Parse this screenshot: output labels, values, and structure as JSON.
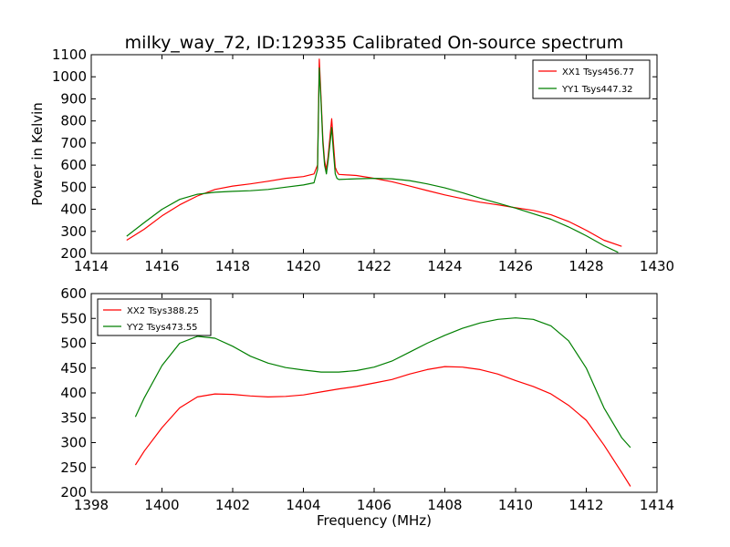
{
  "title": "milky_way_72, ID:129335 Calibrated On-source spectrum",
  "colors": {
    "xx": "#ff0000",
    "yy": "#007f00"
  },
  "chart_data": [
    {
      "type": "line",
      "xlabel": "",
      "ylabel": "Power in Kelvin",
      "xlim": [
        1414,
        1430
      ],
      "ylim": [
        200,
        1100
      ],
      "xticks": [
        1414,
        1416,
        1418,
        1420,
        1422,
        1424,
        1426,
        1428,
        1430
      ],
      "yticks": [
        200,
        300,
        400,
        500,
        600,
        700,
        800,
        900,
        1000,
        1100
      ],
      "legend": "top-right",
      "series": [
        {
          "name": "XX1 Tsys456.77",
          "color": "#ff0000",
          "x": [
            1415.0,
            1415.5,
            1416.0,
            1416.5,
            1417.0,
            1417.5,
            1418.0,
            1418.5,
            1419.0,
            1419.5,
            1420.0,
            1420.3,
            1420.4,
            1420.45,
            1420.5,
            1420.55,
            1420.6,
            1420.65,
            1420.7,
            1420.8,
            1420.85,
            1420.9,
            1420.95,
            1421.0,
            1421.5,
            1422.0,
            1422.5,
            1423.0,
            1423.5,
            1424.0,
            1424.5,
            1425.0,
            1425.5,
            1426.0,
            1426.5,
            1427.0,
            1427.5,
            1428.0,
            1428.5,
            1429.0
          ],
          "y": [
            260,
            310,
            370,
            420,
            460,
            490,
            505,
            515,
            527,
            540,
            548,
            560,
            600,
            1080,
            900,
            720,
            620,
            580,
            640,
            810,
            700,
            590,
            570,
            558,
            553,
            540,
            525,
            505,
            485,
            465,
            448,
            432,
            420,
            407,
            395,
            375,
            345,
            305,
            260,
            232
          ]
        },
        {
          "name": "YY1 Tsys447.32",
          "color": "#007f00",
          "x": [
            1415.0,
            1415.5,
            1416.0,
            1416.5,
            1417.0,
            1417.5,
            1418.0,
            1418.5,
            1419.0,
            1419.5,
            1420.0,
            1420.3,
            1420.4,
            1420.45,
            1420.5,
            1420.55,
            1420.6,
            1420.65,
            1420.7,
            1420.8,
            1420.85,
            1420.9,
            1420.95,
            1421.0,
            1421.5,
            1422.0,
            1422.5,
            1423.0,
            1423.5,
            1424.0,
            1424.5,
            1425.0,
            1425.5,
            1426.0,
            1426.5,
            1427.0,
            1427.5,
            1428.0,
            1428.5,
            1428.9
          ],
          "y": [
            278,
            340,
            400,
            445,
            468,
            477,
            481,
            484,
            490,
            500,
            510,
            520,
            580,
            1040,
            880,
            700,
            600,
            560,
            620,
            770,
            660,
            560,
            540,
            535,
            538,
            540,
            538,
            530,
            515,
            497,
            475,
            450,
            428,
            405,
            380,
            355,
            320,
            280,
            235,
            205
          ]
        }
      ]
    },
    {
      "type": "line",
      "xlabel": "Frequency (MHz)",
      "ylabel": "",
      "xlim": [
        1398,
        1414
      ],
      "ylim": [
        200,
        600
      ],
      "xticks": [
        1398,
        1400,
        1402,
        1404,
        1406,
        1408,
        1410,
        1412,
        1414
      ],
      "yticks": [
        200,
        250,
        300,
        350,
        400,
        450,
        500,
        550,
        600
      ],
      "legend": "top-left",
      "series": [
        {
          "name": "XX2 Tsys388.25",
          "color": "#ff0000",
          "x": [
            1399.25,
            1399.5,
            1400.0,
            1400.5,
            1401.0,
            1401.5,
            1402.0,
            1402.5,
            1403.0,
            1403.5,
            1404.0,
            1404.5,
            1405.0,
            1405.5,
            1406.0,
            1406.5,
            1407.0,
            1407.5,
            1408.0,
            1408.5,
            1409.0,
            1409.5,
            1410.0,
            1410.5,
            1411.0,
            1411.5,
            1412.0,
            1412.5,
            1413.0,
            1413.25
          ],
          "y": [
            255,
            283,
            330,
            370,
            392,
            398,
            397,
            394,
            392,
            393,
            396,
            402,
            408,
            413,
            420,
            427,
            438,
            447,
            453,
            452,
            447,
            438,
            425,
            413,
            398,
            375,
            345,
            295,
            240,
            212
          ]
        },
        {
          "name": "YY2 Tsys473.55",
          "color": "#007f00",
          "x": [
            1399.25,
            1399.5,
            1400.0,
            1400.5,
            1401.0,
            1401.5,
            1402.0,
            1402.5,
            1403.0,
            1403.5,
            1404.0,
            1404.5,
            1405.0,
            1405.5,
            1406.0,
            1406.5,
            1407.0,
            1407.5,
            1408.0,
            1408.5,
            1409.0,
            1409.5,
            1410.0,
            1410.5,
            1411.0,
            1411.5,
            1412.0,
            1412.5,
            1413.0,
            1413.25
          ],
          "y": [
            352,
            390,
            455,
            500,
            514,
            510,
            494,
            474,
            460,
            451,
            446,
            442,
            442,
            445,
            452,
            464,
            482,
            500,
            516,
            530,
            541,
            548,
            551,
            548,
            535,
            505,
            450,
            370,
            310,
            290
          ]
        }
      ]
    }
  ]
}
